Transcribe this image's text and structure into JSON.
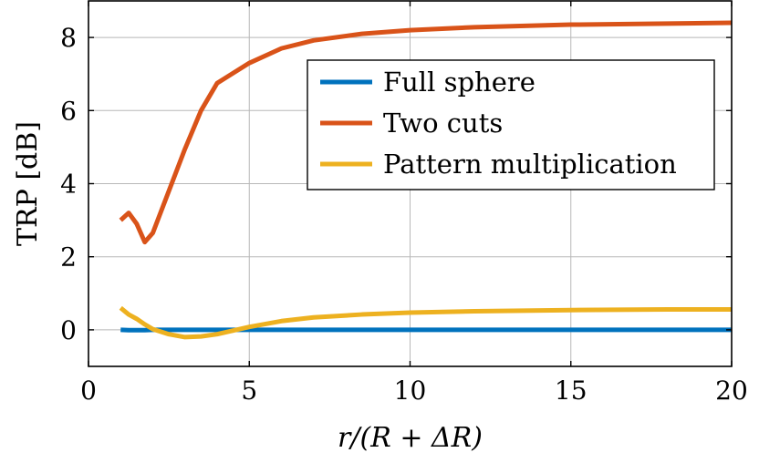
{
  "colors": {
    "full_sphere": "#0072BD",
    "two_cuts": "#D95319",
    "pattern_multiplication": "#EDB120"
  },
  "chart_data": {
    "type": "line",
    "title": "",
    "xlabel": "r/(R + ΔR)",
    "ylabel": "TRP [dB]",
    "xlim": [
      0,
      20
    ],
    "ylim": [
      -1,
      9
    ],
    "xticks": [
      0,
      5,
      10,
      15,
      20
    ],
    "yticks": [
      0,
      2,
      4,
      6,
      8
    ],
    "xtick_labels": [
      "0",
      "5",
      "10",
      "15",
      "20"
    ],
    "ytick_labels": [
      "0",
      "2",
      "4",
      "6",
      "8"
    ],
    "grid": true,
    "legend_position": "top-right",
    "series": [
      {
        "name": "Full sphere",
        "color_key": "full_sphere",
        "x": [
          1,
          1.25,
          1.5,
          1.75,
          2,
          2.5,
          3,
          3.5,
          4,
          5,
          6,
          7,
          8.5,
          10,
          12,
          15,
          18,
          20
        ],
        "y": [
          0,
          -0.01,
          -0.01,
          -0.01,
          0,
          0,
          0,
          0,
          0,
          0,
          0,
          0,
          0,
          0,
          0,
          0,
          0,
          0
        ]
      },
      {
        "name": "Two cuts",
        "color_key": "two_cuts",
        "x": [
          1,
          1.25,
          1.5,
          1.75,
          2,
          2.5,
          3,
          3.5,
          4,
          5,
          6,
          7,
          8.5,
          10,
          12,
          15,
          18,
          20
        ],
        "y": [
          3.0,
          3.2,
          2.9,
          2.4,
          2.65,
          3.8,
          4.95,
          6.0,
          6.75,
          7.3,
          7.7,
          7.92,
          8.1,
          8.2,
          8.28,
          8.35,
          8.38,
          8.4
        ]
      },
      {
        "name": "Pattern multiplication",
        "color_key": "pattern_multiplication",
        "x": [
          1,
          1.25,
          1.5,
          1.75,
          2,
          2.5,
          3,
          3.5,
          4,
          5,
          6,
          7,
          8.5,
          10,
          12,
          15,
          18,
          20
        ],
        "y": [
          0.6,
          0.42,
          0.3,
          0.15,
          0.02,
          -0.12,
          -0.2,
          -0.18,
          -0.12,
          0.08,
          0.24,
          0.34,
          0.42,
          0.47,
          0.51,
          0.54,
          0.56,
          0.56
        ]
      }
    ]
  }
}
